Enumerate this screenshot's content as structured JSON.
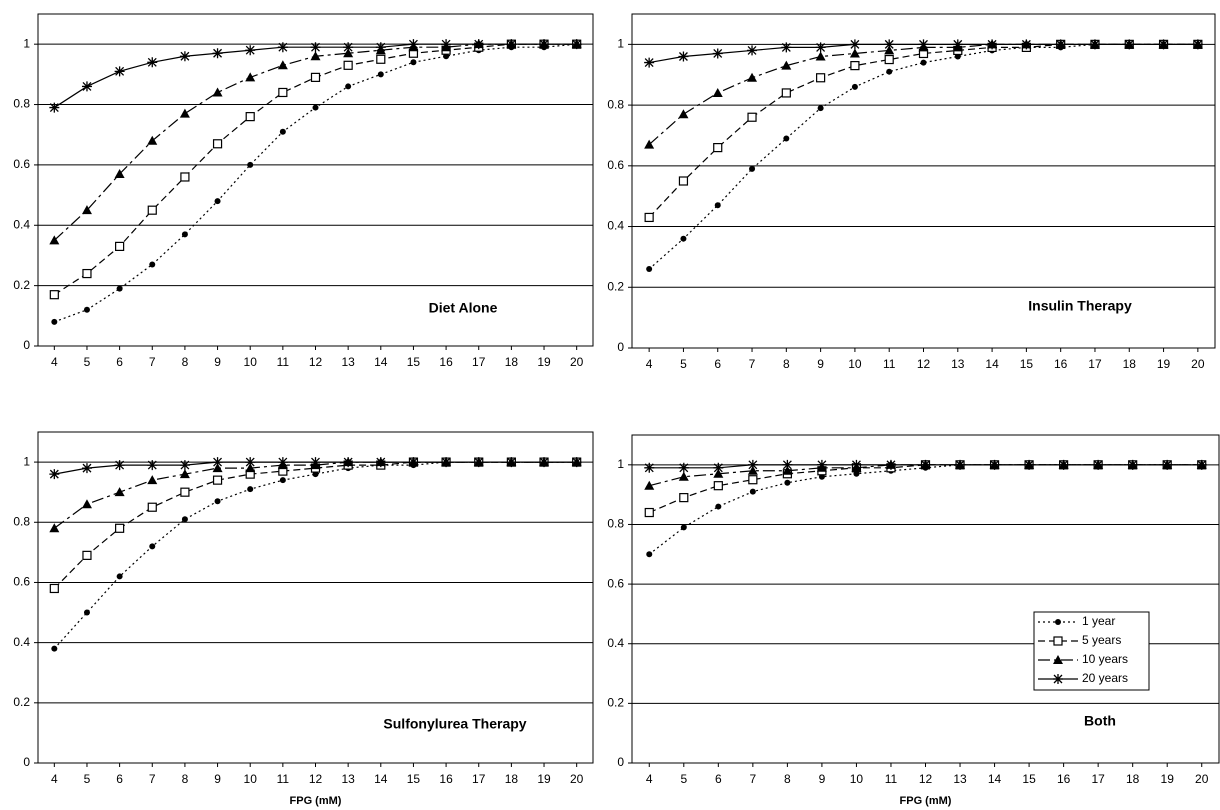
{
  "chart_data": [
    {
      "type": "line",
      "title": "Diet Alone",
      "x": [
        4,
        5,
        6,
        7,
        8,
        9,
        10,
        11,
        12,
        13,
        14,
        15,
        16,
        17,
        18,
        19,
        20
      ],
      "xlim": [
        3.5,
        20.5
      ],
      "xticks": [
        4,
        5,
        6,
        7,
        8,
        9,
        10,
        11,
        12,
        13,
        14,
        15,
        16,
        17,
        18,
        19,
        20
      ],
      "ylim": [
        0,
        1.1
      ],
      "yticks": [
        0,
        0.2,
        0.4,
        0.6,
        0.8,
        1
      ],
      "grid": true,
      "series": [
        {
          "color": "#000000",
          "marker": "circle",
          "line_style": "dotted",
          "values": [
            0.08,
            0.12,
            0.19,
            0.27,
            0.37,
            0.48,
            0.6,
            0.71,
            0.79,
            0.86,
            0.9,
            0.94,
            0.96,
            0.98,
            0.99,
            0.99,
            1
          ]
        },
        {
          "color": "#000000",
          "marker": "open-square",
          "line_style": "dashed",
          "values": [
            0.17,
            0.24,
            0.33,
            0.45,
            0.56,
            0.67,
            0.76,
            0.84,
            0.89,
            0.93,
            0.95,
            0.97,
            0.98,
            0.99,
            1,
            1,
            1
          ]
        },
        {
          "color": "#000000",
          "marker": "triangle",
          "line_style": "long-dash",
          "values": [
            0.35,
            0.45,
            0.57,
            0.68,
            0.77,
            0.84,
            0.89,
            0.93,
            0.96,
            0.97,
            0.98,
            0.99,
            0.99,
            1,
            1,
            1,
            1
          ]
        },
        {
          "color": "#000000",
          "marker": "star",
          "line_style": "solid",
          "values": [
            0.79,
            0.86,
            0.91,
            0.94,
            0.96,
            0.97,
            0.98,
            0.99,
            0.99,
            0.99,
            0.99,
            1,
            1,
            1,
            1,
            1,
            1
          ]
        }
      ]
    },
    {
      "type": "line",
      "title": "Insulin Therapy",
      "x": [
        4,
        5,
        6,
        7,
        8,
        9,
        10,
        11,
        12,
        13,
        14,
        15,
        16,
        17,
        18,
        19,
        20
      ],
      "xlim": [
        3.5,
        20.5
      ],
      "xticks": [
        4,
        5,
        6,
        7,
        8,
        9,
        10,
        11,
        12,
        13,
        14,
        15,
        16,
        17,
        18,
        19,
        20
      ],
      "ylim": [
        0,
        1.1
      ],
      "yticks": [
        0,
        0.2,
        0.4,
        0.6,
        0.8,
        1
      ],
      "grid": true,
      "series": [
        {
          "color": "#000000",
          "marker": "circle",
          "line_style": "dotted",
          "values": [
            0.26,
            0.36,
            0.47,
            0.59,
            0.69,
            0.79,
            0.86,
            0.91,
            0.94,
            0.96,
            0.98,
            0.99,
            0.99,
            1,
            1,
            1,
            1
          ]
        },
        {
          "color": "#000000",
          "marker": "open-square",
          "line_style": "dashed",
          "values": [
            0.43,
            0.55,
            0.66,
            0.76,
            0.84,
            0.89,
            0.93,
            0.95,
            0.97,
            0.98,
            0.99,
            0.99,
            1,
            1,
            1,
            1,
            1
          ]
        },
        {
          "color": "#000000",
          "marker": "triangle",
          "line_style": "long-dash",
          "values": [
            0.67,
            0.77,
            0.84,
            0.89,
            0.93,
            0.96,
            0.97,
            0.98,
            0.99,
            0.99,
            1,
            1,
            1,
            1,
            1,
            1,
            1
          ]
        },
        {
          "color": "#000000",
          "marker": "star",
          "line_style": "solid",
          "values": [
            0.94,
            0.96,
            0.97,
            0.98,
            0.99,
            0.99,
            1,
            1,
            1,
            1,
            1,
            1,
            1,
            1,
            1,
            1,
            1
          ]
        }
      ]
    },
    {
      "type": "line",
      "title": "Sulfonylurea Therapy",
      "x_label": "FPG (mM)",
      "x": [
        4,
        5,
        6,
        7,
        8,
        9,
        10,
        11,
        12,
        13,
        14,
        15,
        16,
        17,
        18,
        19,
        20
      ],
      "xlim": [
        3.5,
        20.5
      ],
      "xticks": [
        4,
        5,
        6,
        7,
        8,
        9,
        10,
        11,
        12,
        13,
        14,
        15,
        16,
        17,
        18,
        19,
        20
      ],
      "ylim": [
        0,
        1.1
      ],
      "yticks": [
        0,
        0.2,
        0.4,
        0.6,
        0.8,
        1
      ],
      "grid": true,
      "series": [
        {
          "color": "#000000",
          "marker": "circle",
          "line_style": "dotted",
          "values": [
            0.38,
            0.5,
            0.62,
            0.72,
            0.81,
            0.87,
            0.91,
            0.94,
            0.96,
            0.98,
            0.99,
            0.99,
            1,
            1,
            1,
            1,
            1
          ]
        },
        {
          "color": "#000000",
          "marker": "open-square",
          "line_style": "dashed",
          "values": [
            0.58,
            0.69,
            0.78,
            0.85,
            0.9,
            0.94,
            0.96,
            0.97,
            0.98,
            0.99,
            0.99,
            1,
            1,
            1,
            1,
            1,
            1
          ]
        },
        {
          "color": "#000000",
          "marker": "triangle",
          "line_style": "long-dash",
          "values": [
            0.78,
            0.86,
            0.9,
            0.94,
            0.96,
            0.98,
            0.98,
            0.99,
            0.99,
            1,
            1,
            1,
            1,
            1,
            1,
            1,
            1
          ]
        },
        {
          "color": "#000000",
          "marker": "star",
          "line_style": "solid",
          "values": [
            0.96,
            0.98,
            0.99,
            0.99,
            0.99,
            1,
            1,
            1,
            1,
            1,
            1,
            1,
            1,
            1,
            1,
            1,
            1
          ]
        }
      ]
    },
    {
      "type": "line",
      "title": "Both",
      "x_label": "FPG (mM)",
      "legend": "right",
      "x": [
        4,
        5,
        6,
        7,
        8,
        9,
        10,
        11,
        12,
        13,
        14,
        15,
        16,
        17,
        18,
        19,
        20
      ],
      "xlim": [
        3.5,
        20.5
      ],
      "xticks": [
        4,
        5,
        6,
        7,
        8,
        9,
        10,
        11,
        12,
        13,
        14,
        15,
        16,
        17,
        18,
        19,
        20
      ],
      "ylim": [
        0,
        1.1
      ],
      "yticks": [
        0,
        0.2,
        0.4,
        0.6,
        0.8,
        1
      ],
      "grid": true,
      "series": [
        {
          "name": "1 year",
          "color": "#000000",
          "marker": "circle",
          "line_style": "dotted",
          "values": [
            0.7,
            0.79,
            0.86,
            0.91,
            0.94,
            0.96,
            0.97,
            0.98,
            0.99,
            1,
            1,
            1,
            1,
            1,
            1,
            1,
            1
          ]
        },
        {
          "name": "5 years",
          "color": "#000000",
          "marker": "open-square",
          "line_style": "dashed",
          "values": [
            0.84,
            0.89,
            0.93,
            0.95,
            0.97,
            0.98,
            0.99,
            0.99,
            1,
            1,
            1,
            1,
            1,
            1,
            1,
            1,
            1
          ]
        },
        {
          "name": "10 years",
          "color": "#000000",
          "marker": "triangle",
          "line_style": "long-dash",
          "values": [
            0.93,
            0.96,
            0.97,
            0.98,
            0.98,
            0.99,
            0.99,
            1,
            1,
            1,
            1,
            1,
            1,
            1,
            1,
            1,
            1
          ]
        },
        {
          "name": "20 years",
          "color": "#000000",
          "marker": "star",
          "line_style": "solid",
          "values": [
            0.99,
            0.99,
            0.99,
            1,
            1,
            1,
            1,
            1,
            1,
            1,
            1,
            1,
            1,
            1,
            1,
            1,
            1
          ]
        }
      ]
    }
  ]
}
